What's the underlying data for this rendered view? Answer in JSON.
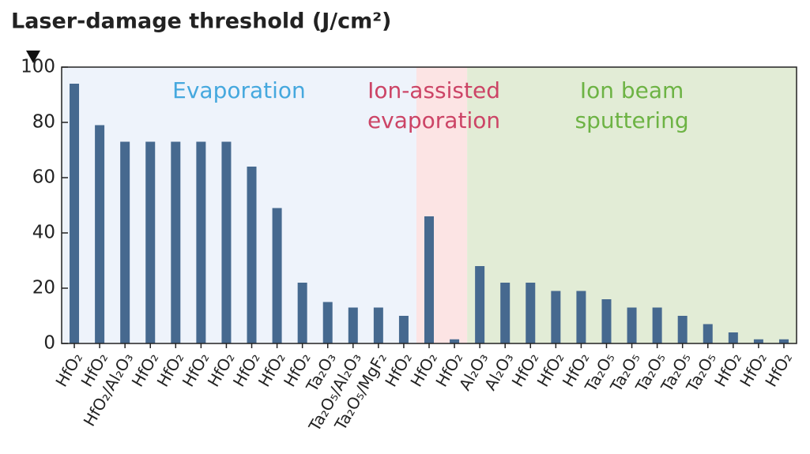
{
  "chart_data": {
    "type": "bar",
    "title": "Laser-damage threshold (J/cm²)",
    "categories": [
      "HfO₂",
      "HfO₂",
      "HfO₂/Al₂O₃",
      "HfO₂",
      "HfO₂",
      "HfO₂",
      "HfO₂",
      "HfO₂",
      "HfO₂",
      "HfO₂",
      "Ta₂O₃",
      "Ta₂O₅/Al₂O₃",
      "Ta₂O₅/MgF₂",
      "HfO₂",
      "HfO₂",
      "HfO₂",
      "Al₂O₃",
      "Al₂O₃",
      "HfO₂",
      "HfO₂",
      "HfO₂",
      "Ta₂O₅",
      "Ta₂O₅",
      "Ta₂O₅",
      "Ta₂O₅",
      "Ta₂O₅",
      "HfO₂",
      "HfO₂",
      "HfO₂"
    ],
    "values": [
      94,
      79,
      73,
      73,
      73,
      73,
      73,
      64,
      49,
      22,
      15,
      13,
      13,
      10,
      46,
      1.5,
      28,
      22,
      22,
      19,
      19,
      16,
      13,
      13,
      10,
      7,
      4,
      1.5,
      1.5
    ],
    "color": "#46698f",
    "ylim": [
      0,
      100
    ],
    "yticks": [
      0,
      20,
      40,
      60,
      80,
      100
    ],
    "grid": false,
    "regions": [
      {
        "name": [
          "Evaporation"
        ],
        "count": 14,
        "color": "#eef3fb",
        "label_color": "#45a8de"
      },
      {
        "name": [
          "Ion-assisted",
          "evaporation"
        ],
        "count": 2,
        "color": "#fce4e4",
        "label_color": "#cc4466"
      },
      {
        "name": [
          "Ion beam",
          "sputtering"
        ],
        "count": 13,
        "color": "#e2ecd6",
        "label_color": "#6db344"
      }
    ]
  }
}
